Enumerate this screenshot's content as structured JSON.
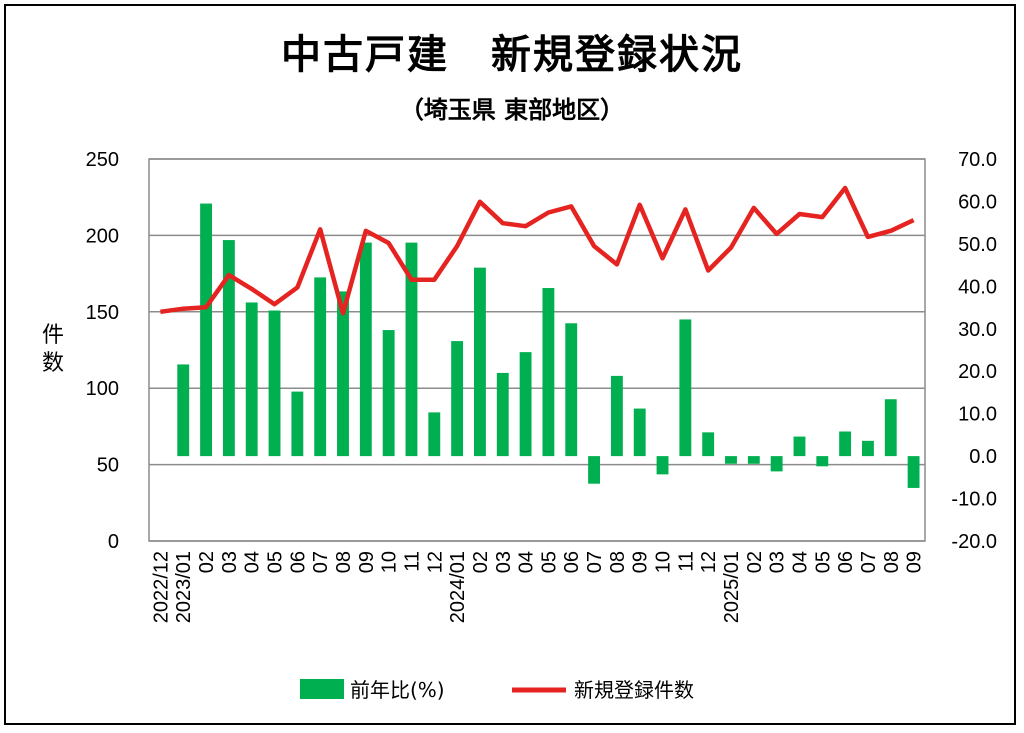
{
  "chart_data": {
    "type": "bar+line",
    "title": "中古戸建　新規登録状況",
    "subtitle": "（埼玉県 東部地区）",
    "ylabel_left": "件数",
    "categories": [
      "2022/12",
      "2023/01",
      "02",
      "03",
      "04",
      "05",
      "06",
      "07",
      "08",
      "09",
      "10",
      "11",
      "12",
      "2024/01",
      "02",
      "03",
      "04",
      "05",
      "06",
      "07",
      "08",
      "09",
      "10",
      "11",
      "12",
      "2025/01",
      "02",
      "03",
      "04",
      "05",
      "06",
      "07",
      "08",
      "09"
    ],
    "left_axis": {
      "min": 0,
      "max": 250,
      "step": 50,
      "ticks": [
        "0",
        "50",
        "100",
        "150",
        "200",
        "250"
      ]
    },
    "right_axis": {
      "min": -20,
      "max": 70,
      "step": 10,
      "ticks": [
        "-20.0",
        "-10.0",
        "0.0",
        "10.0",
        "20.0",
        "30.0",
        "40.0",
        "50.0",
        "60.0",
        "70.0"
      ],
      "negative_color": "#e52421"
    },
    "series": [
      {
        "name": "前年比(%)",
        "type": "bar",
        "axis": "right",
        "color": "#00b050",
        "values": [
          null,
          21.6,
          59.5,
          50.9,
          36.2,
          34.3,
          15.2,
          42.1,
          38.8,
          50.3,
          29.7,
          50.3,
          10.3,
          27.1,
          44.4,
          19.6,
          24.5,
          39.6,
          31.3,
          -6.5,
          18.9,
          11.2,
          -4.3,
          32.2,
          5.6,
          -1.8,
          -1.8,
          -3.6,
          4.6,
          -2.4,
          5.8,
          3.6,
          13.4,
          -7.5
        ]
      },
      {
        "name": "新規登録件数",
        "type": "line",
        "axis": "left",
        "color": "#e52421",
        "values": [
          150,
          152,
          153,
          174,
          165,
          155,
          166,
          204,
          149,
          203,
          195,
          171,
          171,
          193,
          222,
          208,
          206,
          215,
          219,
          193,
          181,
          220,
          185,
          217,
          177,
          192,
          218,
          201,
          214,
          212,
          231,
          199,
          203,
          210
        ]
      }
    ],
    "legend_position": "bottom",
    "grid": true
  }
}
